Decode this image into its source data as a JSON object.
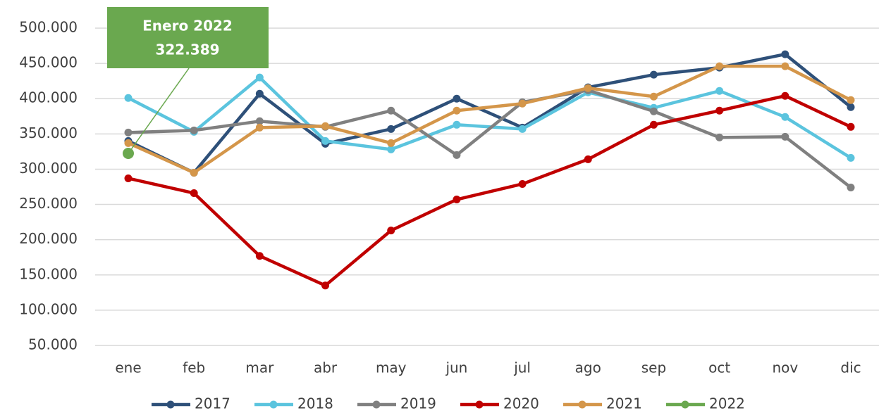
{
  "chart_data": {
    "type": "line",
    "categories": [
      "ene",
      "feb",
      "mar",
      "abr",
      "may",
      "jun",
      "jul",
      "ago",
      "sep",
      "oct",
      "nov",
      "dic"
    ],
    "series": [
      {
        "name": "2017",
        "color": "#2e5079",
        "values": [
          340000,
          295000,
          407000,
          336000,
          357000,
          400000,
          359000,
          416000,
          434000,
          444000,
          463000,
          388000
        ]
      },
      {
        "name": "2018",
        "color": "#5bc4de",
        "values": [
          401000,
          353000,
          430000,
          340000,
          328000,
          363000,
          357000,
          409000,
          387000,
          411000,
          374000,
          316000
        ]
      },
      {
        "name": "2019",
        "color": "#808080",
        "values": [
          352000,
          355000,
          368000,
          360000,
          383000,
          320000,
          395000,
          412000,
          382000,
          345000,
          346000,
          274000
        ]
      },
      {
        "name": "2020",
        "color": "#c00000",
        "values": [
          287000,
          266000,
          177000,
          135000,
          213000,
          257000,
          279000,
          314000,
          363000,
          383000,
          404000,
          360000
        ]
      },
      {
        "name": "2021",
        "color": "#d4964a",
        "values": [
          337000,
          295000,
          359000,
          361000,
          337000,
          383000,
          393000,
          415000,
          403000,
          446000,
          446000,
          398000
        ]
      },
      {
        "name": "2022",
        "color": "#6aa84f",
        "values": [
          322389,
          null,
          null,
          null,
          null,
          null,
          null,
          null,
          null,
          null,
          null,
          null
        ],
        "value_labels": [
          "322.389",
          null,
          null,
          null,
          null,
          null,
          null,
          null,
          null,
          null,
          null,
          null
        ]
      }
    ],
    "annotation": "Enero 2022",
    "ylim": [
      50000,
      500000
    ],
    "yticks": [
      {
        "value": 50000,
        "label": "50.000"
      },
      {
        "value": 100000,
        "label": "100.000"
      },
      {
        "value": 150000,
        "label": "150.000"
      },
      {
        "value": 200000,
        "label": "200.000"
      },
      {
        "value": 250000,
        "label": "250.000"
      },
      {
        "value": 300000,
        "label": "300.000"
      },
      {
        "value": 350000,
        "label": "350.000"
      },
      {
        "value": 400000,
        "label": "400.000"
      },
      {
        "value": 450000,
        "label": "450.000"
      },
      {
        "value": 500000,
        "label": "500.000"
      }
    ],
    "grid": true,
    "legend": "bottom"
  }
}
